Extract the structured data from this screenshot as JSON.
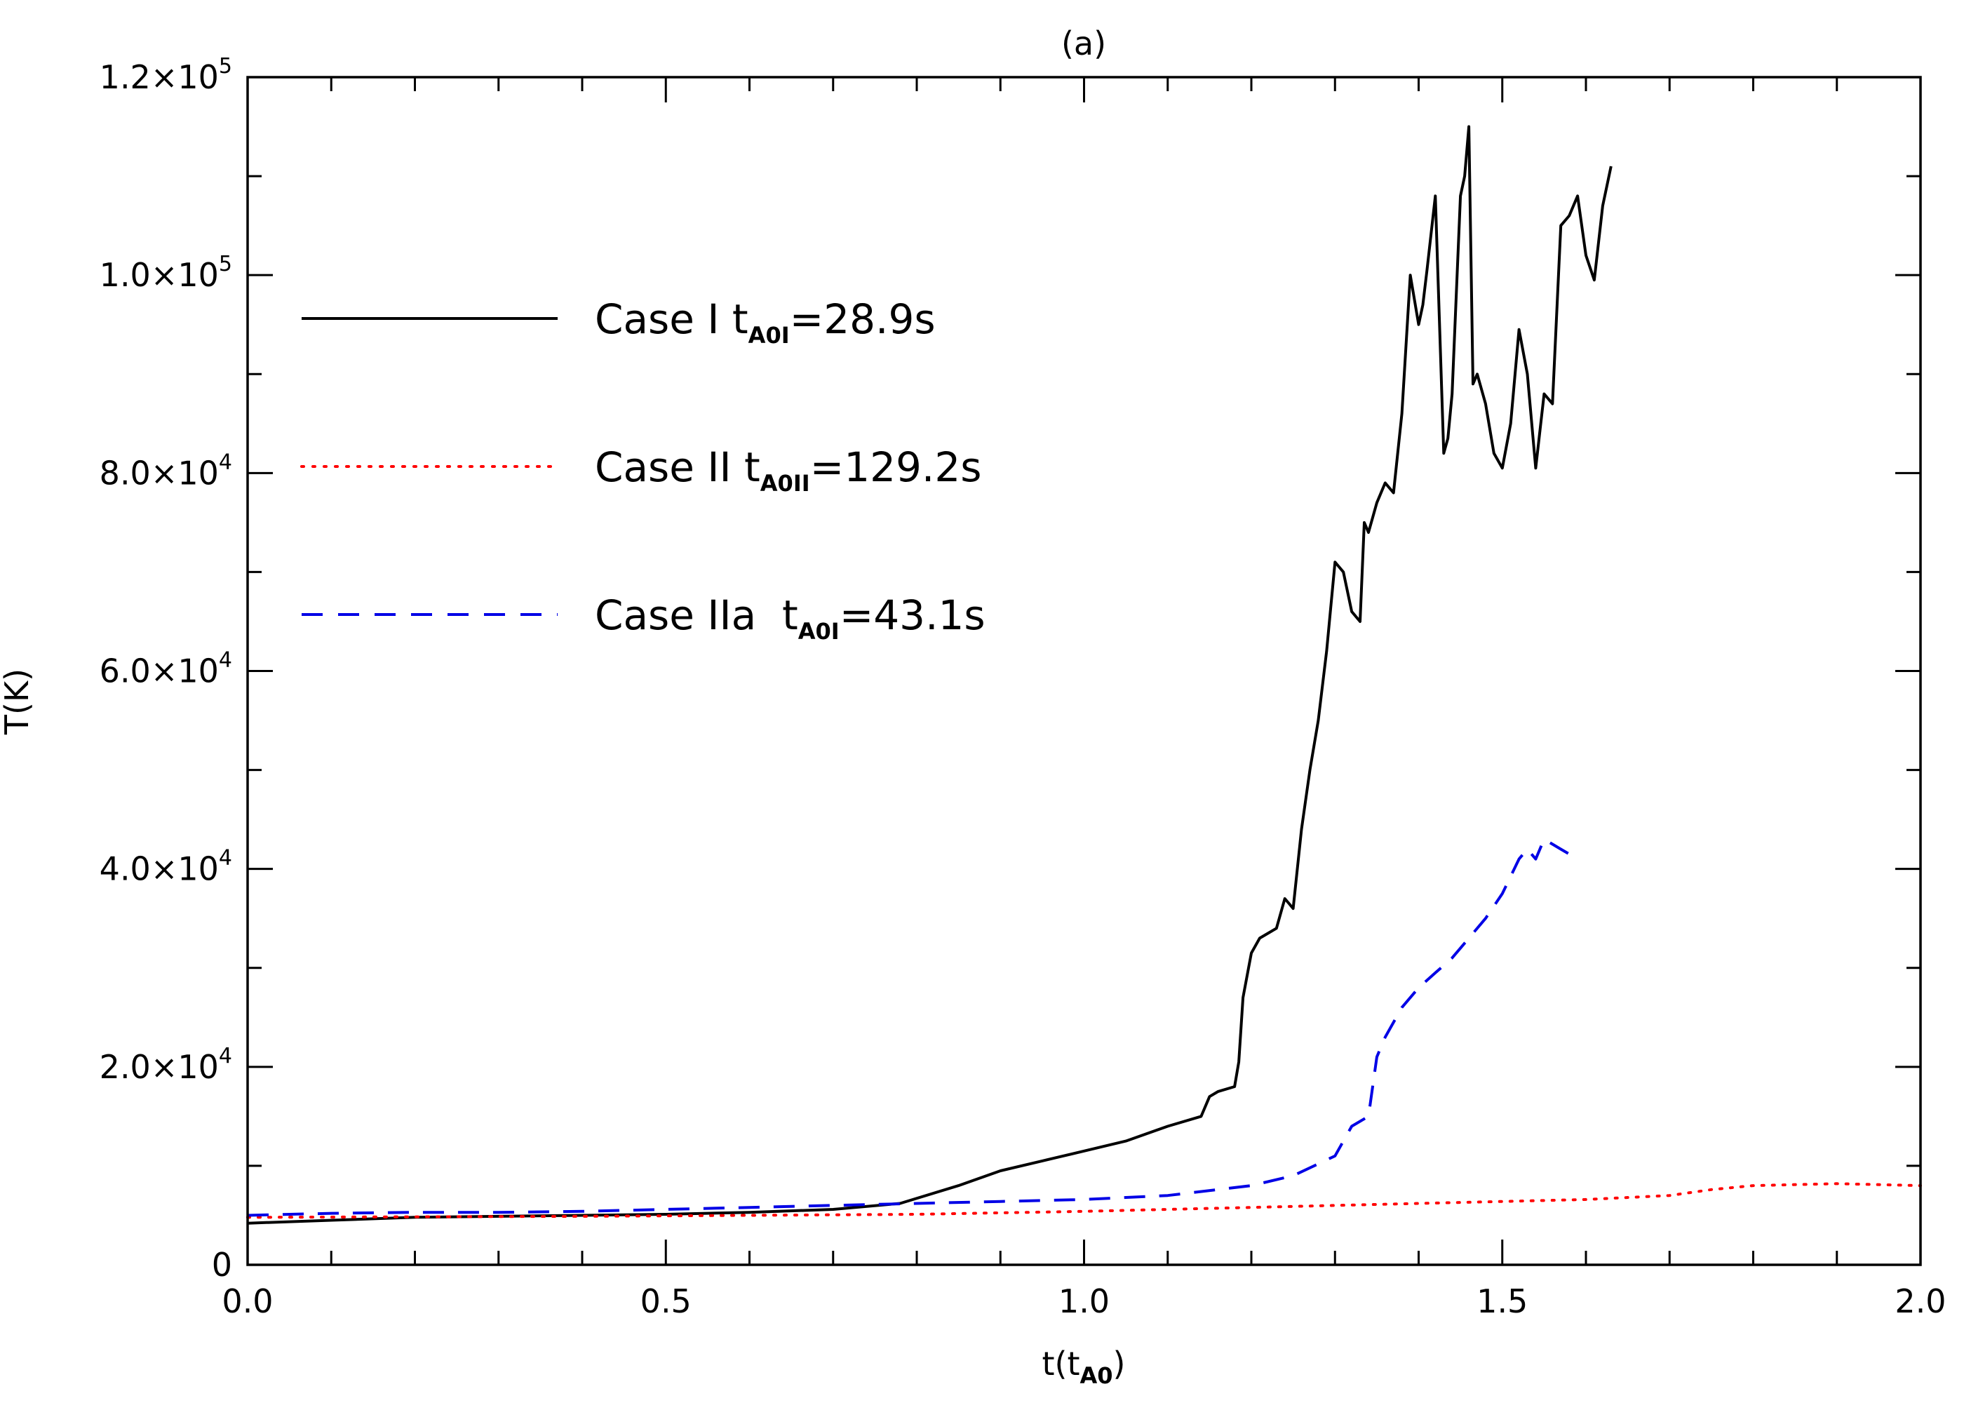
{
  "chart_data": {
    "type": "line",
    "title": "(a)",
    "xlabel": "t(t",
    "xlabel_sub": "A0",
    "xlabel_close": ")",
    "ylabel": "T(K)",
    "xlim": [
      0.0,
      2.0
    ],
    "ylim": [
      0,
      120000
    ],
    "x_ticks": [
      0.0,
      0.5,
      1.0,
      1.5,
      2.0
    ],
    "x_tick_labels": [
      "0.0",
      "0.5",
      "1.0",
      "1.5",
      "2.0"
    ],
    "x_minor_step": 0.1,
    "y_ticks": [
      0,
      20000,
      40000,
      60000,
      80000,
      100000,
      120000
    ],
    "y_tick_labels": [
      {
        "mant": "0",
        "exp": ""
      },
      {
        "mant": "2.0×10",
        "exp": "4"
      },
      {
        "mant": "4.0×10",
        "exp": "4"
      },
      {
        "mant": "6.0×10",
        "exp": "4"
      },
      {
        "mant": "8.0×10",
        "exp": "4"
      },
      {
        "mant": "1.0×10",
        "exp": "5"
      },
      {
        "mant": "1.2×10",
        "exp": "5"
      }
    ],
    "y_minor_step": 10000,
    "legend_position": "upper-left",
    "series": [
      {
        "name": "Case I",
        "label_main": "Case I t",
        "label_sub": "A0I",
        "label_tail": "=28.9s",
        "color": "#000000",
        "style": "solid",
        "x": [
          0.0,
          0.1,
          0.2,
          0.3,
          0.4,
          0.5,
          0.6,
          0.7,
          0.78,
          0.85,
          0.9,
          0.95,
          1.0,
          1.05,
          1.1,
          1.14,
          1.15,
          1.16,
          1.18,
          1.185,
          1.19,
          1.2,
          1.21,
          1.22,
          1.23,
          1.24,
          1.245,
          1.25,
          1.26,
          1.27,
          1.28,
          1.29,
          1.3,
          1.31,
          1.32,
          1.33,
          1.335,
          1.34,
          1.35,
          1.36,
          1.37,
          1.38,
          1.39,
          1.4,
          1.405,
          1.41,
          1.42,
          1.43,
          1.435,
          1.44,
          1.45,
          1.455,
          1.46,
          1.465,
          1.47,
          1.48,
          1.49,
          1.5,
          1.51,
          1.52,
          1.53,
          1.54,
          1.55,
          1.56,
          1.57,
          1.58,
          1.59,
          1.6,
          1.61,
          1.62,
          1.63
        ],
        "y": [
          4200,
          4500,
          4800,
          4900,
          5000,
          5100,
          5300,
          5600,
          6200,
          8000,
          9500,
          10500,
          11500,
          12500,
          14000,
          15000,
          17000,
          17500,
          18000,
          20500,
          27000,
          31500,
          33000,
          33500,
          34000,
          37000,
          36500,
          36000,
          44000,
          50000,
          55000,
          62000,
          71000,
          70000,
          66000,
          65000,
          75000,
          74000,
          77000,
          79000,
          78000,
          86000,
          100000,
          95000,
          97000,
          100500,
          108000,
          82000,
          83500,
          88000,
          108000,
          110000,
          115000,
          89000,
          90000,
          87000,
          82000,
          80500,
          85000,
          94500,
          90000,
          80500,
          88000,
          87000,
          105000,
          106000,
          108000,
          102000,
          99500,
          107000,
          111000
        ]
      },
      {
        "name": "Case II",
        "label_main": "Case II t",
        "label_sub": "A0II",
        "label_tail": "=129.2s",
        "color": "#ff0000",
        "style": "dotted",
        "x": [
          0.0,
          0.2,
          0.4,
          0.6,
          0.8,
          1.0,
          1.2,
          1.4,
          1.6,
          1.7,
          1.75,
          1.8,
          1.9,
          2.0
        ],
        "y": [
          4800,
          4850,
          4900,
          5000,
          5100,
          5400,
          5800,
          6200,
          6600,
          7000,
          7600,
          8000,
          8200,
          8000
        ]
      },
      {
        "name": "Case IIa",
        "label_main": "Case IIa  t",
        "label_sub": "A0I",
        "label_tail": "=43.1s",
        "color": "#0000e6",
        "style": "dashed",
        "x": [
          0.0,
          0.1,
          0.2,
          0.3,
          0.4,
          0.5,
          0.6,
          0.7,
          0.8,
          0.9,
          1.0,
          1.1,
          1.2,
          1.25,
          1.3,
          1.32,
          1.34,
          1.35,
          1.36,
          1.38,
          1.4,
          1.42,
          1.44,
          1.46,
          1.48,
          1.5,
          1.52,
          1.53,
          1.54,
          1.55,
          1.56,
          1.57,
          1.58
        ],
        "y": [
          5000,
          5200,
          5300,
          5300,
          5400,
          5600,
          5800,
          6000,
          6200,
          6400,
          6600,
          7000,
          8000,
          9000,
          11000,
          14000,
          15000,
          21000,
          23000,
          26000,
          28000,
          29500,
          31000,
          33000,
          35000,
          37500,
          41000,
          42000,
          41000,
          43000,
          42500,
          42000,
          41500
        ]
      }
    ]
  }
}
